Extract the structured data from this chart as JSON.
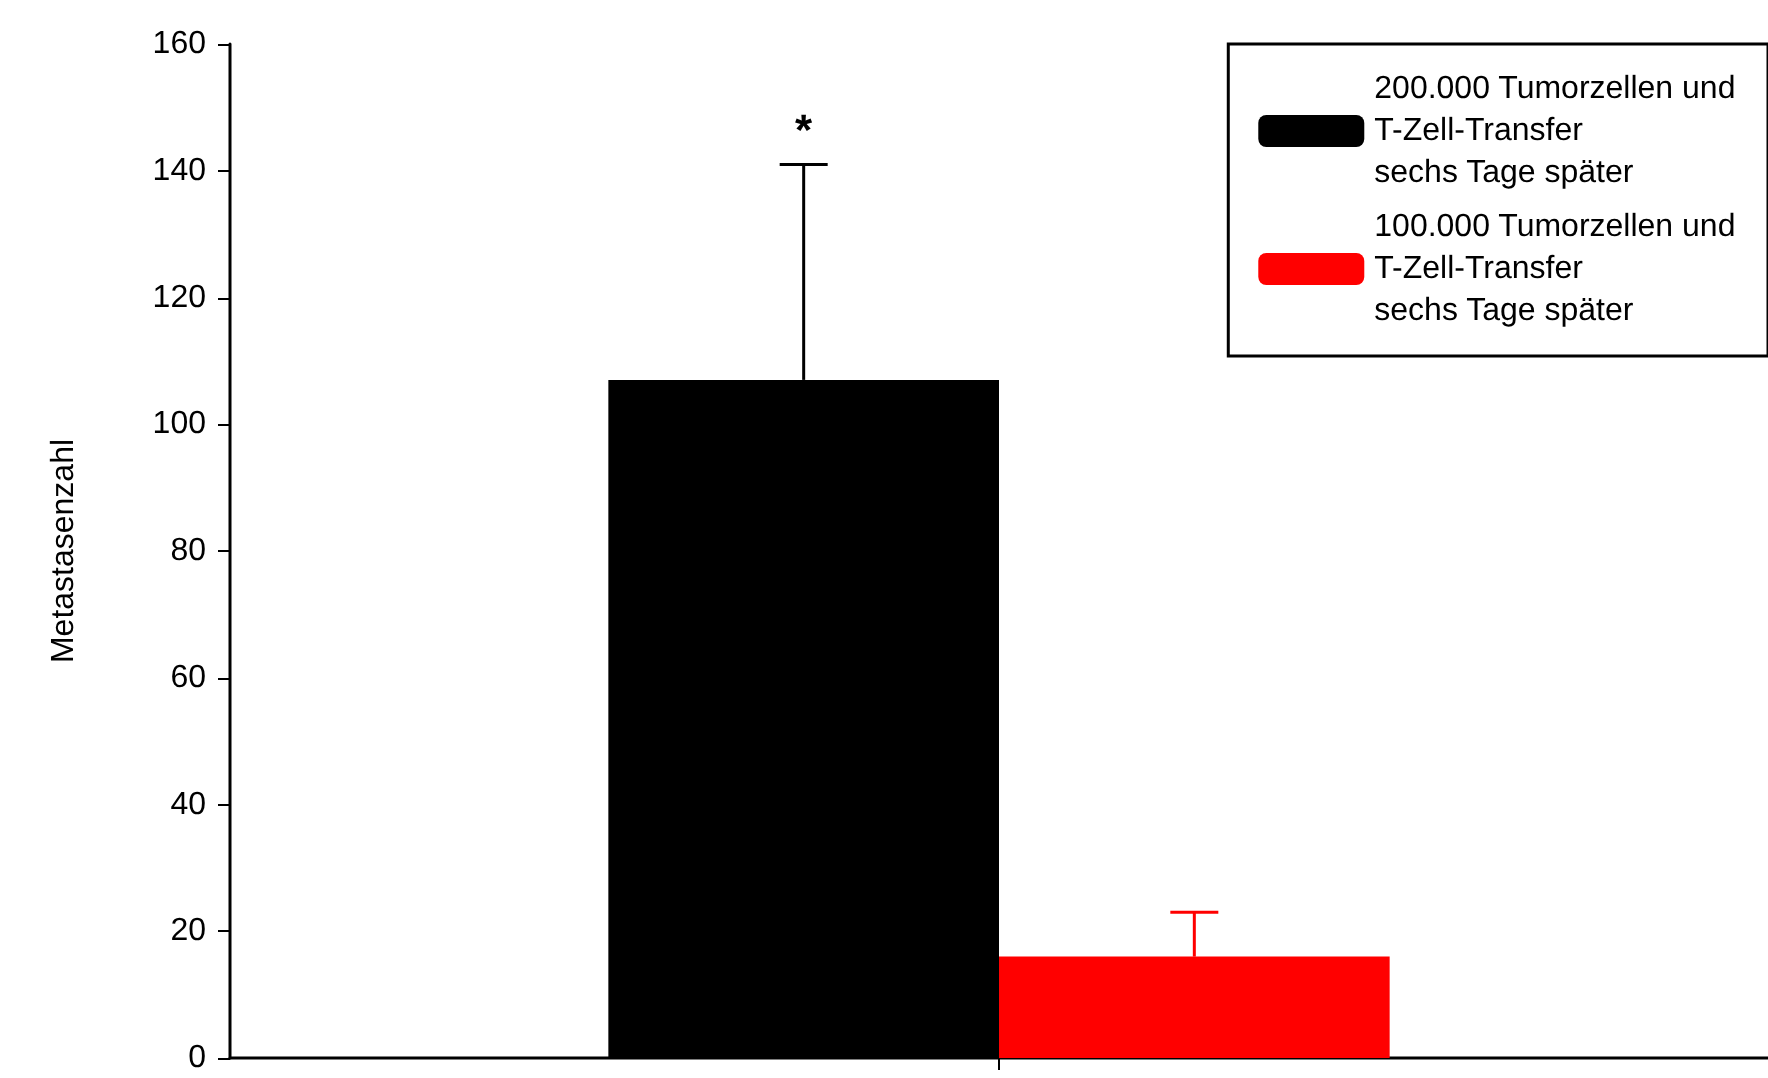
{
  "chart_data": {
    "type": "bar",
    "ylabel": "Metastasenzahl",
    "categories": [
      null
    ],
    "series": [
      {
        "name": "200.000 Tumorzellen und\nT-Zell-Transfer\nsechs Tage später",
        "color": "#000000",
        "values": [
          107
        ],
        "errors": [
          [
            107,
            141
          ]
        ]
      },
      {
        "name": "100.000 Tumorzellen und\nT-Zell-Transfer\nsechs Tage später",
        "color": "#ff0000",
        "values": [
          16
        ],
        "errors": [
          [
            16,
            23
          ]
        ]
      }
    ],
    "ylim": [
      0,
      160
    ],
    "yticks": [
      0,
      20,
      40,
      60,
      80,
      100,
      120,
      140,
      160
    ],
    "annotations": [
      {
        "text": "*",
        "y": 141
      }
    ],
    "grid": false,
    "legend": "top right"
  }
}
